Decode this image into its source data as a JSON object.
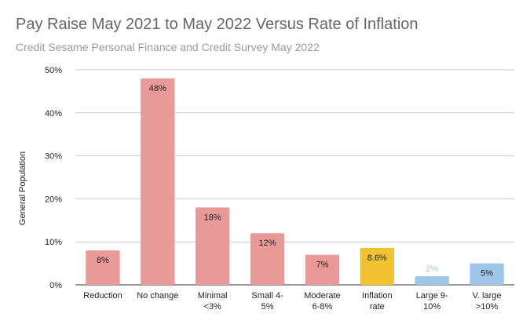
{
  "chart_data": {
    "type": "bar",
    "title": "Pay Raise May 2021 to May 2022 Versus Rate of Inflation",
    "subtitle": "Credit Sesame Personal Finance and Credit Survey May 2022",
    "ylabel": "General Population",
    "xlabel": "",
    "ylim": [
      0,
      50
    ],
    "yticks": [
      0,
      10,
      20,
      30,
      40,
      50
    ],
    "ytick_labels": [
      "0%",
      "10%",
      "20%",
      "30%",
      "40%",
      "50%"
    ],
    "grid": true,
    "legend": "none",
    "categories": [
      [
        "Reduction"
      ],
      [
        "No change"
      ],
      [
        "Minimal",
        "<3%"
      ],
      [
        "Small 4-",
        "5%"
      ],
      [
        "Moderate",
        "6-8%"
      ],
      [
        "Inflation",
        "rate"
      ],
      [
        "Large 9-",
        "10%"
      ],
      [
        "V. large",
        ">10%"
      ]
    ],
    "values": [
      8,
      48,
      18,
      12,
      7,
      8.6,
      2,
      5
    ],
    "data_labels": [
      "8%",
      "48%",
      "18%",
      "12%",
      "7%",
      "8.6%",
      "2%",
      "5%"
    ],
    "colors": [
      "#ea9999",
      "#ea9999",
      "#ea9999",
      "#ea9999",
      "#ea9999",
      "#f1c232",
      "#9fc5e8",
      "#9fc5e8"
    ],
    "label_colors": [
      "#222222",
      "#222222",
      "#222222",
      "#222222",
      "#222222",
      "#222222",
      "#9fc5e8",
      "#222222"
    ]
  }
}
